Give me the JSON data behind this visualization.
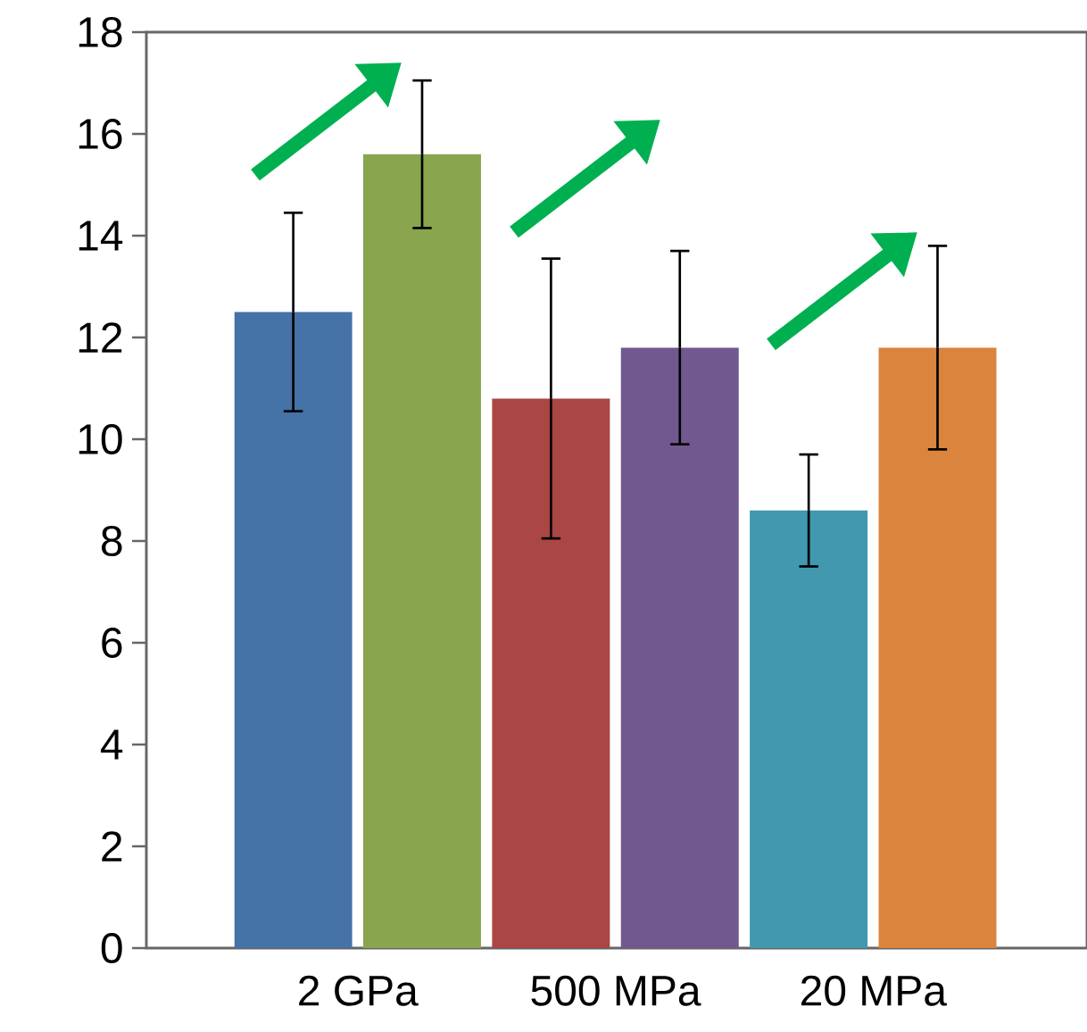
{
  "chart_data": {
    "type": "bar",
    "categories": [
      "2 GPa",
      "500 MPa",
      "20 MPa"
    ],
    "series": [
      {
        "colors": [
          "#4572a7",
          "#aa4643",
          "#4198af"
        ],
        "values": [
          12.5,
          10.8,
          8.6
        ],
        "errors": [
          1.95,
          2.75,
          1.1
        ]
      },
      {
        "colors": [
          "#89a54e",
          "#71588f",
          "#db843d"
        ],
        "values": [
          15.6,
          11.8,
          11.8
        ],
        "errors": [
          1.45,
          1.9,
          2.0
        ]
      }
    ],
    "ylim": [
      0,
      18
    ],
    "yticks": [
      0,
      2,
      4,
      6,
      8,
      10,
      12,
      14,
      16,
      18
    ],
    "grid": false
  }
}
